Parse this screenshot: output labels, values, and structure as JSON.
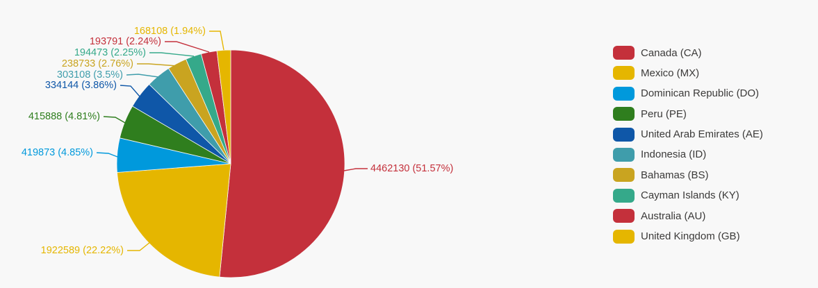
{
  "app": {
    "background_color": "#f8f8f8",
    "legend_text_color": "#3b3a39"
  },
  "chart_data": {
    "type": "pie",
    "title": "",
    "legend_position": "right",
    "start_angle_deg": 0,
    "direction": "clockwise",
    "slice_label_format": "value (percent)",
    "series": [
      {
        "name": "Canada (CA)",
        "code": "CA",
        "value": 4462130,
        "percent": "51.57%",
        "label": "4462130 (51.57%)",
        "color": "#c4303b"
      },
      {
        "name": "Mexico (MX)",
        "code": "MX",
        "value": 1922589,
        "percent": "22.22%",
        "label": "1922589 (22.22%)",
        "color": "#e5b600"
      },
      {
        "name": "Dominican Republic (DO)",
        "code": "DO",
        "value": 419873,
        "percent": "4.85%",
        "label": "419873 (4.85%)",
        "color": "#0099dc"
      },
      {
        "name": "Peru (PE)",
        "code": "PE",
        "value": 415888,
        "percent": "4.81%",
        "label": "415888 (4.81%)",
        "color": "#2f7e1e"
      },
      {
        "name": "United Arab Emirates (AE)",
        "code": "AE",
        "value": 334144,
        "percent": "3.86%",
        "label": "334144 (3.86%)",
        "color": "#0f57a8"
      },
      {
        "name": "Indonesia (ID)",
        "code": "ID",
        "value": 303108,
        "percent": "3.5%",
        "label": "303108 (3.5%)",
        "color": "#3f9dab"
      },
      {
        "name": "Bahamas (BS)",
        "code": "BS",
        "value": 238733,
        "percent": "2.76%",
        "label": "238733 (2.76%)",
        "color": "#c9a420"
      },
      {
        "name": "Cayman Islands (KY)",
        "code": "KY",
        "value": 194473,
        "percent": "2.25%",
        "label": "194473 (2.25%)",
        "color": "#35a98a"
      },
      {
        "name": "Australia (AU)",
        "code": "AU",
        "value": 193791,
        "percent": "2.24%",
        "label": "193791 (2.24%)",
        "color": "#c4303b"
      },
      {
        "name": "United Kingdom (GB)",
        "code": "GB",
        "value": 168108,
        "percent": "1.94%",
        "label": "168108 (1.94%)",
        "color": "#e5b600"
      }
    ]
  }
}
